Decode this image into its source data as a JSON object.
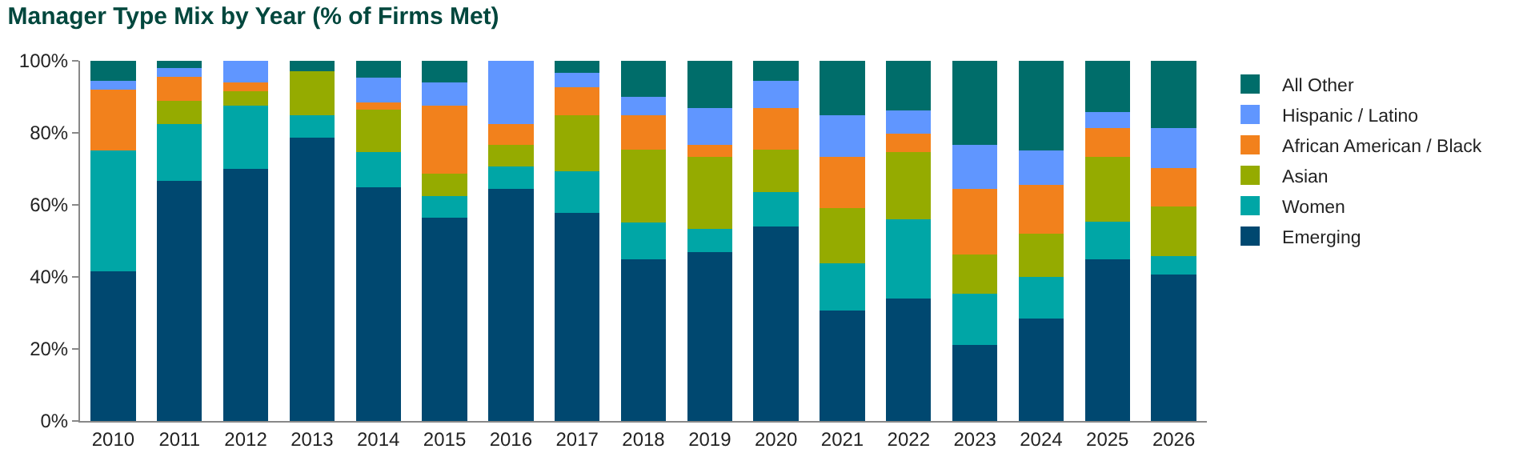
{
  "chart_data": {
    "type": "bar",
    "title": "Manager Type Mix by Year (% of Firms Met)",
    "stacked": true,
    "legend": "right",
    "categories": [
      "2010",
      "2011",
      "2012",
      "2013",
      "2014",
      "2015",
      "2016",
      "2017",
      "2018",
      "2019",
      "2020",
      "2021",
      "2022",
      "2023",
      "2024",
      "2025",
      "2026"
    ],
    "ylim": [
      0,
      100
    ],
    "yticks": [
      {
        "value": 0,
        "label": "0%"
      },
      {
        "value": 20,
        "label": "20%"
      },
      {
        "value": 40,
        "label": "40%"
      },
      {
        "value": 60,
        "label": "60%"
      },
      {
        "value": 80,
        "label": "80%"
      },
      {
        "value": 100,
        "label": "100%"
      }
    ],
    "series": [
      {
        "name": "Emerging",
        "color": "#004870",
        "values": [
          41.6,
          66.6,
          69.9,
          78.7,
          65.0,
          56.4,
          64.5,
          57.8,
          44.8,
          46.8,
          53.9,
          30.6,
          34.1,
          21.1,
          28.5,
          44.8,
          40.7
        ]
      },
      {
        "name": "Women",
        "color": "#00a6a6",
        "values": [
          33.6,
          15.8,
          17.6,
          6.1,
          9.7,
          6.1,
          6.1,
          11.5,
          10.3,
          6.6,
          9.6,
          13.2,
          21.8,
          14.2,
          11.4,
          10.6,
          5.1
        ]
      },
      {
        "name": "Asian",
        "color": "#95ab00",
        "values": [
          0,
          6.5,
          4.1,
          12.3,
          11.8,
          6.1,
          6.1,
          15.5,
          20.2,
          19.9,
          11.8,
          15.3,
          18.8,
          11.0,
          12.1,
          17.9,
          13.7
        ]
      },
      {
        "name": "African American / Black",
        "color": "#f2811c",
        "values": [
          16.7,
          6.7,
          2.3,
          0,
          2.0,
          18.9,
          5.7,
          7.8,
          9.5,
          3.4,
          11.5,
          14.2,
          5.0,
          18.2,
          13.5,
          8.1,
          10.8
        ]
      },
      {
        "name": "Hispanic / Latino",
        "color": "#6096ff",
        "values": [
          2.5,
          2.4,
          6.1,
          0,
          6.9,
          6.4,
          17.6,
          4.0,
          5.1,
          10.1,
          7.6,
          11.5,
          6.6,
          12.2,
          9.7,
          4.4,
          11.0
        ]
      },
      {
        "name": "All Other",
        "color": "#006d6a",
        "values": [
          5.6,
          2.0,
          0,
          2.9,
          4.6,
          6.1,
          0,
          3.4,
          10.1,
          13.2,
          5.6,
          15.2,
          13.7,
          23.3,
          24.8,
          14.2,
          18.7
        ]
      }
    ]
  }
}
